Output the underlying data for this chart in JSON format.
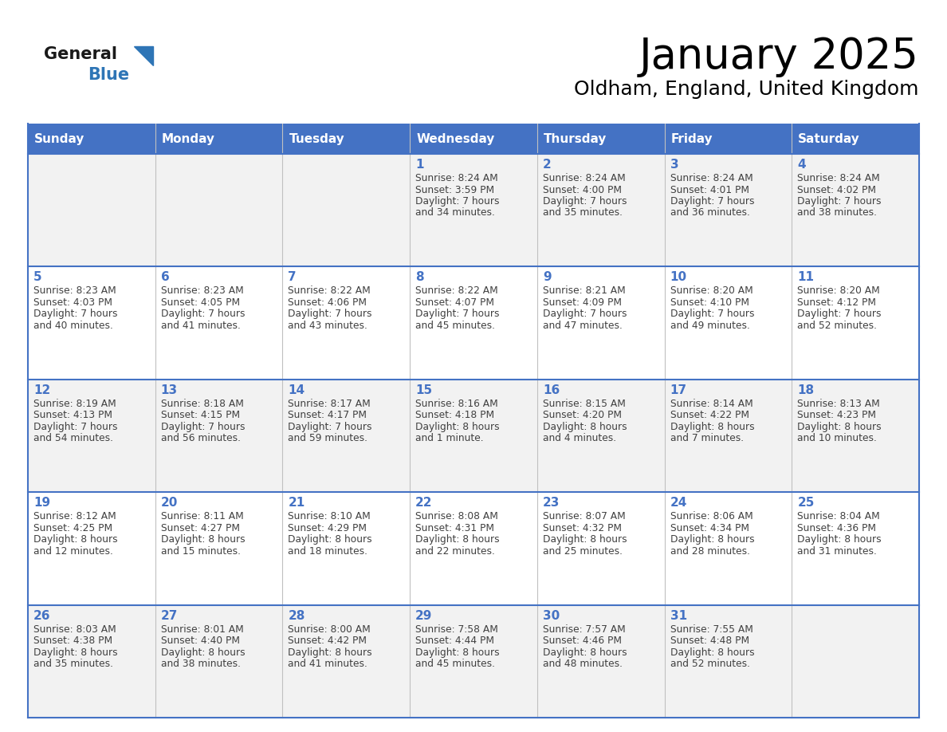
{
  "title": "January 2025",
  "subtitle": "Oldham, England, United Kingdom",
  "days_of_week": [
    "Sunday",
    "Monday",
    "Tuesday",
    "Wednesday",
    "Thursday",
    "Friday",
    "Saturday"
  ],
  "header_bg_color": "#4472C4",
  "header_text_color": "#FFFFFF",
  "cell_bg_even": "#F2F2F2",
  "cell_bg_odd": "#FFFFFF",
  "grid_line_color": "#4472C4",
  "separator_color": "#4472C4",
  "day_number_color": "#4472C4",
  "text_color": "#404040",
  "logo_general_color": "#1a1a1a",
  "logo_blue_color": "#2E75B6",
  "weeks": [
    [
      {
        "num": "",
        "sunrise": "",
        "sunset": "",
        "daylight": ""
      },
      {
        "num": "",
        "sunrise": "",
        "sunset": "",
        "daylight": ""
      },
      {
        "num": "",
        "sunrise": "",
        "sunset": "",
        "daylight": ""
      },
      {
        "num": "1",
        "sunrise": "8:24 AM",
        "sunset": "3:59 PM",
        "daylight": "7 hours and 34 minutes."
      },
      {
        "num": "2",
        "sunrise": "8:24 AM",
        "sunset": "4:00 PM",
        "daylight": "7 hours and 35 minutes."
      },
      {
        "num": "3",
        "sunrise": "8:24 AM",
        "sunset": "4:01 PM",
        "daylight": "7 hours and 36 minutes."
      },
      {
        "num": "4",
        "sunrise": "8:24 AM",
        "sunset": "4:02 PM",
        "daylight": "7 hours and 38 minutes."
      }
    ],
    [
      {
        "num": "5",
        "sunrise": "8:23 AM",
        "sunset": "4:03 PM",
        "daylight": "7 hours and 40 minutes."
      },
      {
        "num": "6",
        "sunrise": "8:23 AM",
        "sunset": "4:05 PM",
        "daylight": "7 hours and 41 minutes."
      },
      {
        "num": "7",
        "sunrise": "8:22 AM",
        "sunset": "4:06 PM",
        "daylight": "7 hours and 43 minutes."
      },
      {
        "num": "8",
        "sunrise": "8:22 AM",
        "sunset": "4:07 PM",
        "daylight": "7 hours and 45 minutes."
      },
      {
        "num": "9",
        "sunrise": "8:21 AM",
        "sunset": "4:09 PM",
        "daylight": "7 hours and 47 minutes."
      },
      {
        "num": "10",
        "sunrise": "8:20 AM",
        "sunset": "4:10 PM",
        "daylight": "7 hours and 49 minutes."
      },
      {
        "num": "11",
        "sunrise": "8:20 AM",
        "sunset": "4:12 PM",
        "daylight": "7 hours and 52 minutes."
      }
    ],
    [
      {
        "num": "12",
        "sunrise": "8:19 AM",
        "sunset": "4:13 PM",
        "daylight": "7 hours and 54 minutes."
      },
      {
        "num": "13",
        "sunrise": "8:18 AM",
        "sunset": "4:15 PM",
        "daylight": "7 hours and 56 minutes."
      },
      {
        "num": "14",
        "sunrise": "8:17 AM",
        "sunset": "4:17 PM",
        "daylight": "7 hours and 59 minutes."
      },
      {
        "num": "15",
        "sunrise": "8:16 AM",
        "sunset": "4:18 PM",
        "daylight": "8 hours and 1 minute."
      },
      {
        "num": "16",
        "sunrise": "8:15 AM",
        "sunset": "4:20 PM",
        "daylight": "8 hours and 4 minutes."
      },
      {
        "num": "17",
        "sunrise": "8:14 AM",
        "sunset": "4:22 PM",
        "daylight": "8 hours and 7 minutes."
      },
      {
        "num": "18",
        "sunrise": "8:13 AM",
        "sunset": "4:23 PM",
        "daylight": "8 hours and 10 minutes."
      }
    ],
    [
      {
        "num": "19",
        "sunrise": "8:12 AM",
        "sunset": "4:25 PM",
        "daylight": "8 hours and 12 minutes."
      },
      {
        "num": "20",
        "sunrise": "8:11 AM",
        "sunset": "4:27 PM",
        "daylight": "8 hours and 15 minutes."
      },
      {
        "num": "21",
        "sunrise": "8:10 AM",
        "sunset": "4:29 PM",
        "daylight": "8 hours and 18 minutes."
      },
      {
        "num": "22",
        "sunrise": "8:08 AM",
        "sunset": "4:31 PM",
        "daylight": "8 hours and 22 minutes."
      },
      {
        "num": "23",
        "sunrise": "8:07 AM",
        "sunset": "4:32 PM",
        "daylight": "8 hours and 25 minutes."
      },
      {
        "num": "24",
        "sunrise": "8:06 AM",
        "sunset": "4:34 PM",
        "daylight": "8 hours and 28 minutes."
      },
      {
        "num": "25",
        "sunrise": "8:04 AM",
        "sunset": "4:36 PM",
        "daylight": "8 hours and 31 minutes."
      }
    ],
    [
      {
        "num": "26",
        "sunrise": "8:03 AM",
        "sunset": "4:38 PM",
        "daylight": "8 hours and 35 minutes."
      },
      {
        "num": "27",
        "sunrise": "8:01 AM",
        "sunset": "4:40 PM",
        "daylight": "8 hours and 38 minutes."
      },
      {
        "num": "28",
        "sunrise": "8:00 AM",
        "sunset": "4:42 PM",
        "daylight": "8 hours and 41 minutes."
      },
      {
        "num": "29",
        "sunrise": "7:58 AM",
        "sunset": "4:44 PM",
        "daylight": "8 hours and 45 minutes."
      },
      {
        "num": "30",
        "sunrise": "7:57 AM",
        "sunset": "4:46 PM",
        "daylight": "8 hours and 48 minutes."
      },
      {
        "num": "31",
        "sunrise": "7:55 AM",
        "sunset": "4:48 PM",
        "daylight": "8 hours and 52 minutes."
      },
      {
        "num": "",
        "sunrise": "",
        "sunset": "",
        "daylight": ""
      }
    ]
  ]
}
